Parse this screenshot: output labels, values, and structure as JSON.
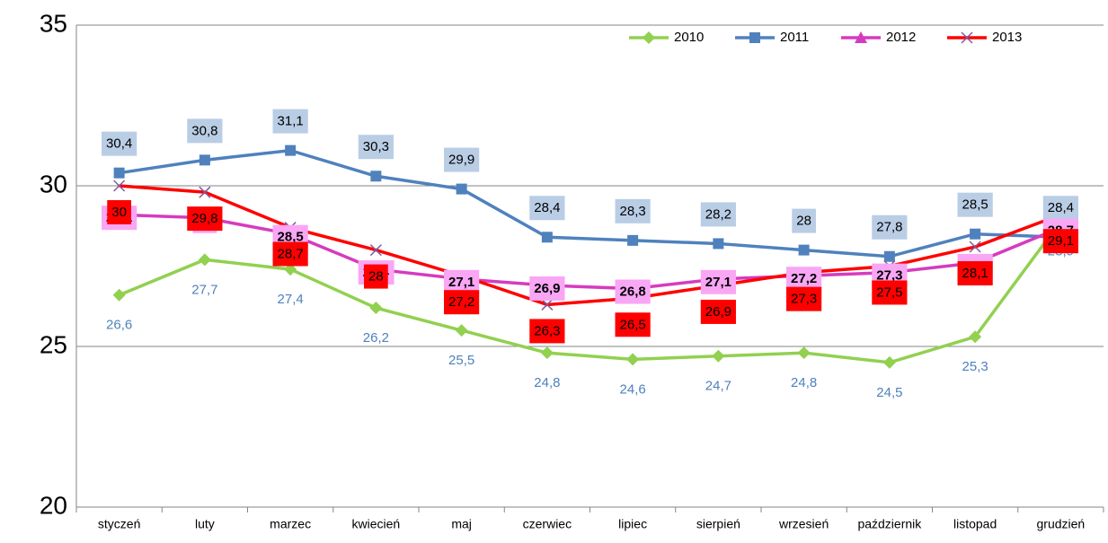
{
  "chart_data": {
    "type": "line",
    "categories": [
      "styczeń",
      "luty",
      "marzec",
      "kwiecień",
      "maj",
      "czerwiec",
      "lipiec",
      "sierpień",
      "wrzesień",
      "październik",
      "listopad",
      "grudzień"
    ],
    "ylim": [
      20,
      35
    ],
    "yticks": [
      20,
      25,
      30,
      35
    ],
    "grid": true,
    "legend": "top-right",
    "series": [
      {
        "name": "2010",
        "color": "#92d050",
        "marker": "diamond",
        "values": [
          26.6,
          27.7,
          27.4,
          26.2,
          25.5,
          24.8,
          24.6,
          24.7,
          24.8,
          24.5,
          25.3,
          28.9
        ],
        "value_labels": [
          "26,6",
          "27,7",
          "27,4",
          "26,2",
          "25,5",
          "24,8",
          "24,6",
          "24,7",
          "24,8",
          "24,5",
          "25,3",
          "28,9"
        ]
      },
      {
        "name": "2011",
        "color": "#4f81bd",
        "marker": "square",
        "values": [
          30.4,
          30.8,
          31.1,
          30.3,
          29.9,
          28.4,
          28.3,
          28.2,
          28,
          27.8,
          28.5,
          28.4
        ],
        "value_labels": [
          "30,4",
          "30,8",
          "31,1",
          "30,3",
          "29,9",
          "28,4",
          "28,3",
          "28,2",
          "28",
          "27,8",
          "28,5",
          "28,4"
        ]
      },
      {
        "name": "2012",
        "color": "#d63bbf",
        "marker": "triangle",
        "values": [
          29.1,
          29,
          28.5,
          27.4,
          27.1,
          26.9,
          26.8,
          27.1,
          27.2,
          27.3,
          27.6,
          28.7
        ],
        "value_labels": [
          "29,1",
          "29",
          "28,5",
          "27,4",
          "27,1",
          "26,9",
          "26,8",
          "27,1",
          "27,2",
          "27,3",
          "27,6",
          "28,7"
        ]
      },
      {
        "name": "2013",
        "color": "#ff0000",
        "marker": "x",
        "values": [
          30,
          29.8,
          28.7,
          28,
          27.2,
          26.3,
          26.5,
          26.9,
          27.3,
          27.5,
          28.1,
          29.1
        ],
        "value_labels": [
          "30",
          "29,8",
          "28,7",
          "28",
          "27,2",
          "26,3",
          "26,5",
          "26,9",
          "27,3",
          "27,5",
          "28,1",
          "29,1"
        ]
      }
    ]
  }
}
